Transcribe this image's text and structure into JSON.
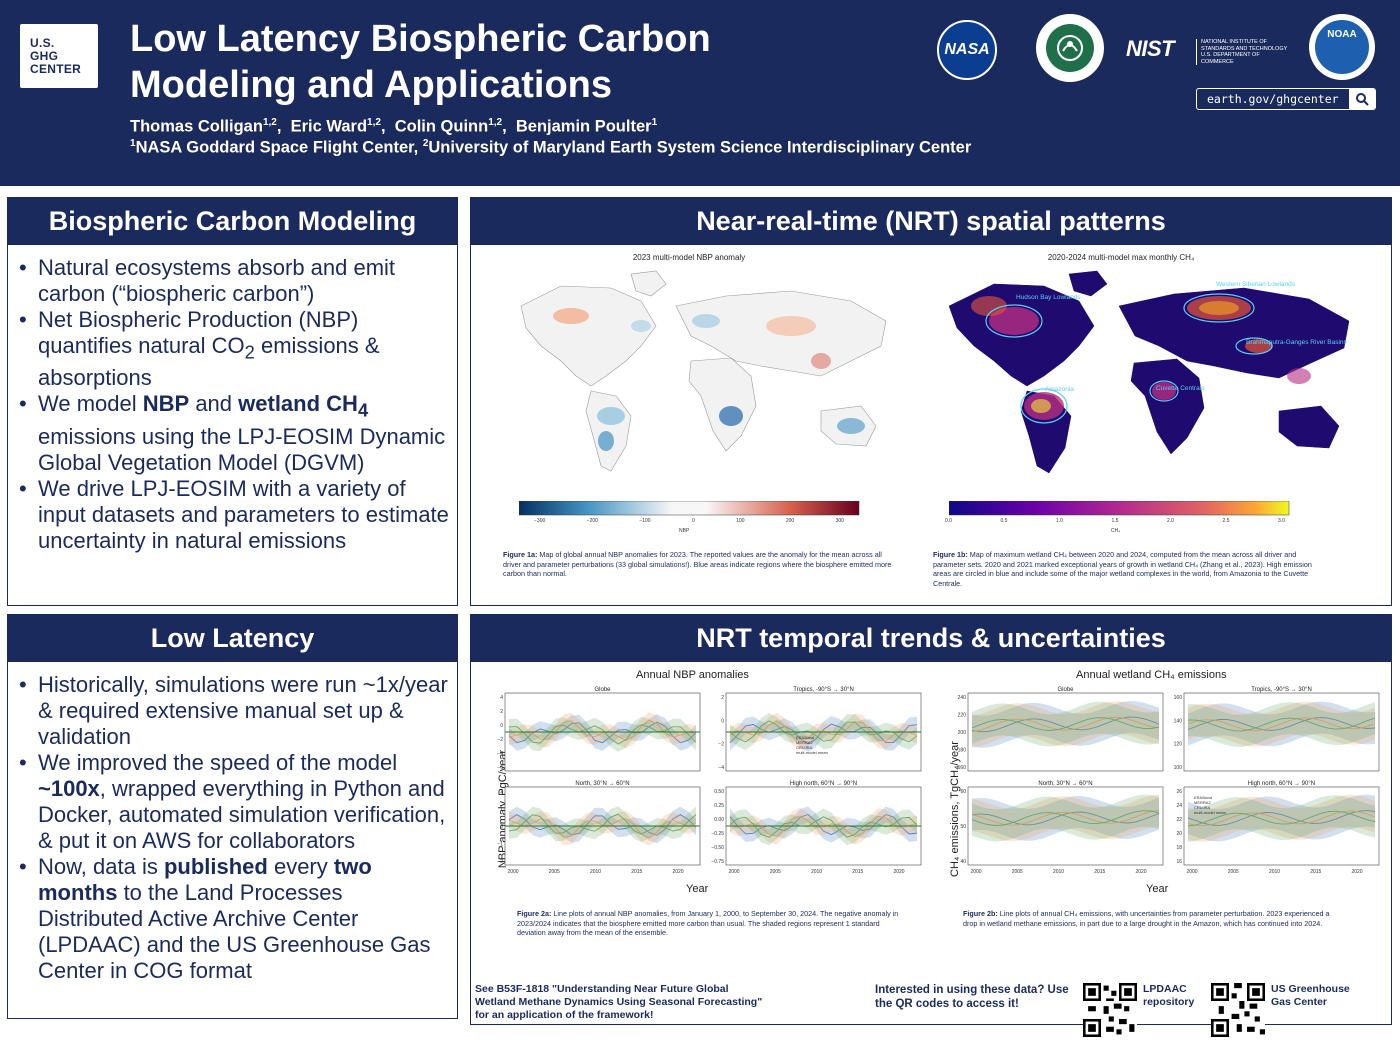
{
  "header": {
    "logo_lines": [
      "U.S.",
      "GHG",
      "CENTER"
    ],
    "title_line1": "Low Latency Biospheric Carbon",
    "title_line2": "Modeling and Applications",
    "authors": [
      {
        "name": "Thomas Colligan",
        "sup": "1,2"
      },
      {
        "name": "Eric Ward",
        "sup": "1,2"
      },
      {
        "name": "Colin Quinn",
        "sup": "1,2"
      },
      {
        "name": "Benjamin Poulter",
        "sup": "1"
      }
    ],
    "affil1_sup": "1",
    "affil1": "NASA Goddard Space Flight Center, ",
    "affil2_sup": "2",
    "affil2": "University of Maryland Earth System Science Interdisciplinary Center",
    "nasa_logo": "NASA",
    "nist_logo": "NIST",
    "nist_sub": "NATIONAL INSTITUTE OF STANDARDS AND TECHNOLOGY U.S. DEPARTMENT OF COMMERCE",
    "noaa_logo": "NOAA",
    "url": "earth.gov/ghgcenter",
    "search_icon": "search-icon"
  },
  "panel1": {
    "heading": "Biospheric Carbon Modeling",
    "b1": "Natural ecosystems absorb and emit carbon (“biospheric carbon”)",
    "b2a": "Net Biospheric Production (NBP) quantifies natural CO",
    "b2sub": "2",
    "b2b": " emissions & absorptions",
    "b3a": "We model ",
    "b3b": "NBP",
    "b3c": " and ",
    "b3d": "wetland CH",
    "b3sub": "4",
    "b3e": " emissions using the LPJ-EOSIM Dynamic Global Vegetation Model (DGVM)",
    "b4": "We drive LPJ-EOSIM with a variety of input datasets and parameters to estimate uncertainty in natural emissions"
  },
  "panel2": {
    "heading": "Near-real-time (NRT) spatial patterns",
    "map1_title": "2023 multi-model NBP anomaly",
    "map2_title": "2020-2024 multi-model max monthly CH₄",
    "map2_regions": [
      "Western Siberian Lowlands",
      "Hudson Bay Lowlands",
      "Brahmaputra-Ganges River Basins",
      "Amazonia",
      "Cuvette Centrale"
    ],
    "cbar1_ticks": [
      "−300",
      "−200",
      "−100",
      "0",
      "100",
      "200",
      "300"
    ],
    "cbar1_label": "NBP",
    "cbar2_ticks": [
      "0.0",
      "0.5",
      "1.0",
      "1.5",
      "2.0",
      "2.5",
      "3.0"
    ],
    "cbar2_label": "CH₄",
    "cap1_num": "Figure 1a:",
    "cap1": " Map of global annual NBP anomalies for 2023. The reported values are the anomaly for the mean across all driver and parameter perturbations (33 global simulations!). Blue areas indicate regions where the biosphere emitted more carbon than normal.",
    "cap2_num": "Figure 1b:",
    "cap2": " Map of maximum wetland CH₄ between 2020 and 2024, computed from the mean across all driver and parameter sets. 2020 and 2021 marked exceptional years of growth in wetland CH₄ (Zhang et al., 2023). High emission areas are circled in blue and include some of the major wetland complexes in the world, from Amazonia to the Cuvette Centrale."
  },
  "panel3": {
    "heading": "Low Latency",
    "b1": "Historically, simulations were run ~1x/year & required extensive manual set up & validation",
    "b2a": "We improved the speed of the model ",
    "b2b": "~100x",
    "b2c": ", wrapped everything in Python and Docker, automated simulation verification, & put it on AWS for collaborators",
    "b3a": "Now, data is ",
    "b3b": "published",
    "b3c": " every ",
    "b3d": "two months",
    "b3e": " to the Land Processes Distributed Active Archive Center (LPDAAC) and the US Greenhouse Gas Center in COG format"
  },
  "panel4": {
    "heading": "NRT temporal trends & uncertainties",
    "left_title": "Annual NBP anomalies",
    "right_title": "Annual wetland CH₄ emissions",
    "left_ylabel": "NBP anomaly, PgC/year",
    "right_ylabel": "CH₄ emissions, TgCH₄/year",
    "xlabel": "Year",
    "x_ticks": [
      "2000",
      "2005",
      "2010",
      "2015",
      "2020"
    ],
    "sub_titles": [
      "Globe",
      "Tropics, -90°S → 30°N",
      "North, 30°N → 60°N",
      "High north, 60°N → 90°N"
    ],
    "legend": [
      "ERA5land",
      "MERRA2",
      "CRUJRA",
      "multi-model mean"
    ],
    "nbp_ticks": {
      "globe": [
        "4",
        "2",
        "0",
        "−2",
        "−4",
        "−6"
      ],
      "tropics": [
        "2",
        "0",
        "−2",
        "−4"
      ],
      "north": [
        "2",
        "1",
        "0",
        "−1",
        "−2"
      ],
      "high": [
        "0.50",
        "0.25",
        "0.00",
        "−0.25",
        "−0.50",
        "−0.75"
      ]
    },
    "ch4_ticks": {
      "globe": [
        "240",
        "220",
        "200",
        "180",
        "160"
      ],
      "tropics": [
        "160",
        "140",
        "120",
        "100"
      ],
      "north": [
        "60",
        "50",
        "40"
      ],
      "high": [
        "26",
        "24",
        "22",
        "20",
        "18",
        "16"
      ]
    },
    "cap1_num": "Figure 2a:",
    "cap1": " Line plots of annual NBP anomalies, from January 1, 2000, to September 30, 2024. The negative anomaly in 2023/2024 indicates that the biosphere emitted more carbon than usual. The shaded regions represent 1 standard deviation away from the mean of the ensemble.",
    "cap2_num": "Figure 2b:",
    "cap2": " Line plots of annual CH₄ emissions, with uncertainties from parameter perturbation. 2023 experienced a drop in wetland methane emissions, in part due to a large drought in the Amazon, which has continued into 2024.",
    "footer_left": "See B53F-1818 \"Understanding Near Future Global Wetland Methane Dynamics Using Seasonal Forecasting\" for an application of the framework!",
    "footer_mid": "Interested in using these data? Use the QR codes to access it!",
    "qr1_label": "LPDAAC repository",
    "qr2_label": "US Greenhouse Gas Center"
  },
  "colors": {
    "navy": "#1b2a5c",
    "nbp_blue": "#2166ac",
    "nbp_red": "#b2182b",
    "ch4_dark": "#1a0a5e",
    "ch4_bright": "#f9e53b"
  }
}
